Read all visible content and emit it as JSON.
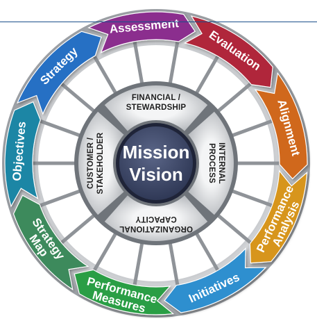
{
  "hub": {
    "line1": "Mission",
    "line2": "Vision"
  },
  "quadrants": {
    "top": {
      "line1": "FINANCIAL /",
      "line2": "STEWARDSHIP"
    },
    "right": {
      "line1": "INTERNAL",
      "line2": "PROCESS"
    },
    "bottom": {
      "line1": "ORGANIZATIONAL",
      "line2": "CAPACITY"
    },
    "left": {
      "line1": "CUSTOMER /",
      "line2": "STAKEHOLDER"
    }
  },
  "cycle": [
    {
      "id": "assessment",
      "lines": [
        "Assessment"
      ],
      "color": "#8b2f8e"
    },
    {
      "id": "evaluation",
      "lines": [
        "Evaluation"
      ],
      "color": "#b0283b"
    },
    {
      "id": "alignment",
      "lines": [
        "Alignment"
      ],
      "color": "#d0671f"
    },
    {
      "id": "performance-analysis",
      "lines": [
        "Performance",
        "Analysis"
      ],
      "color": "#d7951d"
    },
    {
      "id": "initiatives",
      "lines": [
        "Initiatives"
      ],
      "color": "#2f8fcf"
    },
    {
      "id": "performance-measures",
      "lines": [
        "Performance",
        "Measures"
      ],
      "color": "#2b9e45"
    },
    {
      "id": "strategy-map",
      "lines": [
        "Strategy",
        "Map"
      ],
      "color": "#3d8a5c"
    },
    {
      "id": "objectives",
      "lines": [
        "Objectives"
      ],
      "color": "#1f86a5"
    },
    {
      "id": "strategy",
      "lines": [
        "Strategy"
      ],
      "color": "#2870c4"
    }
  ],
  "colors": {
    "ring": "#b9bcc0",
    "spokes": "#8f9398",
    "quadrant": "#d9dbde",
    "hub": "#3f4a68",
    "topline": "#1a4f8a"
  }
}
